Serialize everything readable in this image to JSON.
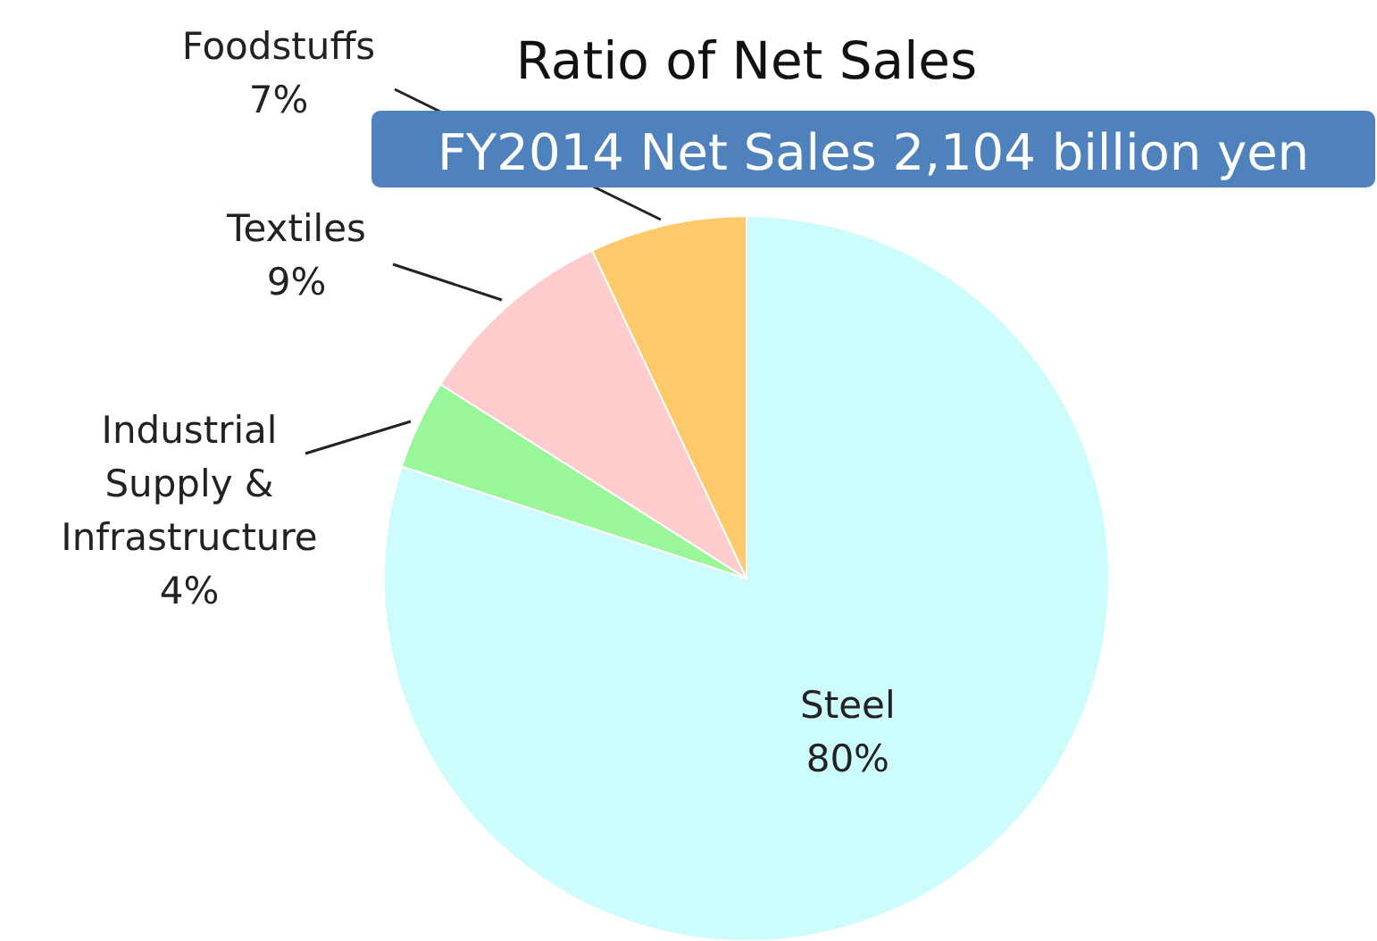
{
  "chart_data": {
    "type": "pie",
    "title": "Ratio of Net Sales",
    "subtitle": "FY2014 Net Sales 2,104 billion yen",
    "categories": [
      "Steel",
      "Industrial Supply & Infrastructure",
      "Textiles",
      "Foodstuffs"
    ],
    "values": [
      80,
      4,
      9,
      7
    ],
    "value_labels": [
      "80%",
      "4%",
      "9%",
      "7%"
    ],
    "colors": [
      "#ccfcfc",
      "#99f79a",
      "#fecccc",
      "#fdc96b"
    ]
  }
}
